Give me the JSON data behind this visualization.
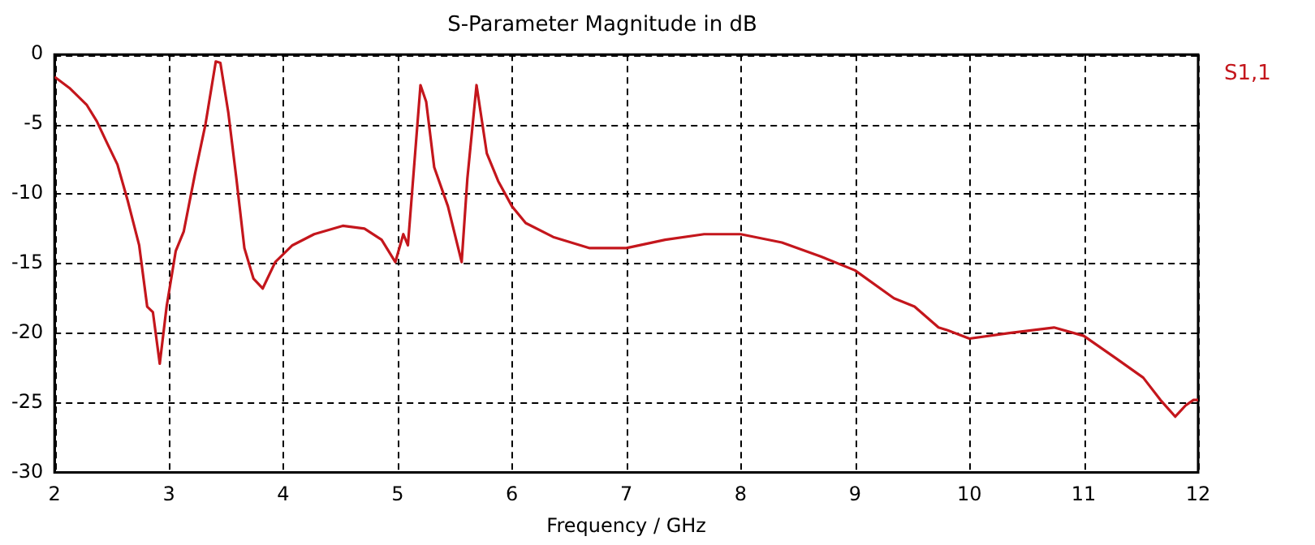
{
  "chart_data": {
    "type": "line",
    "title": "S-Parameter Magnitude in dB",
    "xlabel": "Frequency / GHz",
    "x": [
      2.0,
      2.13,
      2.28,
      2.37,
      2.45,
      2.55,
      2.64,
      2.74,
      2.81,
      2.86,
      2.92,
      2.98,
      3.06,
      3.13,
      3.23,
      3.32,
      3.41,
      3.45,
      3.52,
      3.59,
      3.66,
      3.74,
      3.82,
      3.93,
      4.08,
      4.27,
      4.52,
      4.71,
      4.86,
      4.98,
      5.05,
      5.09,
      5.2,
      5.25,
      5.32,
      5.44,
      5.56,
      5.61,
      5.69,
      5.78,
      5.88,
      6.0,
      6.12,
      6.36,
      6.68,
      7.0,
      7.34,
      7.68,
      8.0,
      8.36,
      8.7,
      9.0,
      9.34,
      9.52,
      9.73,
      9.81,
      10.0,
      10.35,
      10.74,
      11.0,
      11.28,
      11.52,
      11.67,
      11.8,
      11.89,
      11.96,
      12.0
    ],
    "series": [
      {
        "name": "S1,1",
        "color": "#c4161c",
        "values": [
          -1.6,
          -2.4,
          -3.6,
          -4.8,
          -6.2,
          -7.9,
          -10.5,
          -13.7,
          -18.1,
          -18.5,
          -22.2,
          -18.1,
          -14.1,
          -12.7,
          -8.5,
          -5.0,
          -0.5,
          -0.6,
          -4.2,
          -8.9,
          -13.9,
          -16.1,
          -16.8,
          -14.9,
          -13.7,
          -12.9,
          -12.3,
          -12.5,
          -13.3,
          -14.9,
          -12.9,
          -13.7,
          -2.2,
          -3.4,
          -8.1,
          -10.9,
          -14.9,
          -8.9,
          -2.2,
          -7.1,
          -9.1,
          -10.9,
          -12.1,
          -13.1,
          -13.9,
          -13.9,
          -13.3,
          -12.9,
          -12.9,
          -13.5,
          -14.5,
          -15.5,
          -17.5,
          -18.1,
          -19.6,
          -19.8,
          -20.4,
          -20.0,
          -19.6,
          -20.2,
          -21.8,
          -23.2,
          -24.8,
          -26.0,
          -25.2,
          -24.8,
          -24.8
        ]
      }
    ],
    "xlim": [
      2,
      12
    ],
    "xticks": [
      2,
      3,
      4,
      5,
      6,
      7,
      8,
      9,
      10,
      11,
      12
    ],
    "ylim": [
      -30,
      0
    ],
    "yticks": [
      -30,
      -25,
      -20,
      -15,
      -10,
      -5,
      0
    ],
    "grid": true,
    "legend": "top right",
    "marker": "none",
    "line_style": "solid"
  }
}
